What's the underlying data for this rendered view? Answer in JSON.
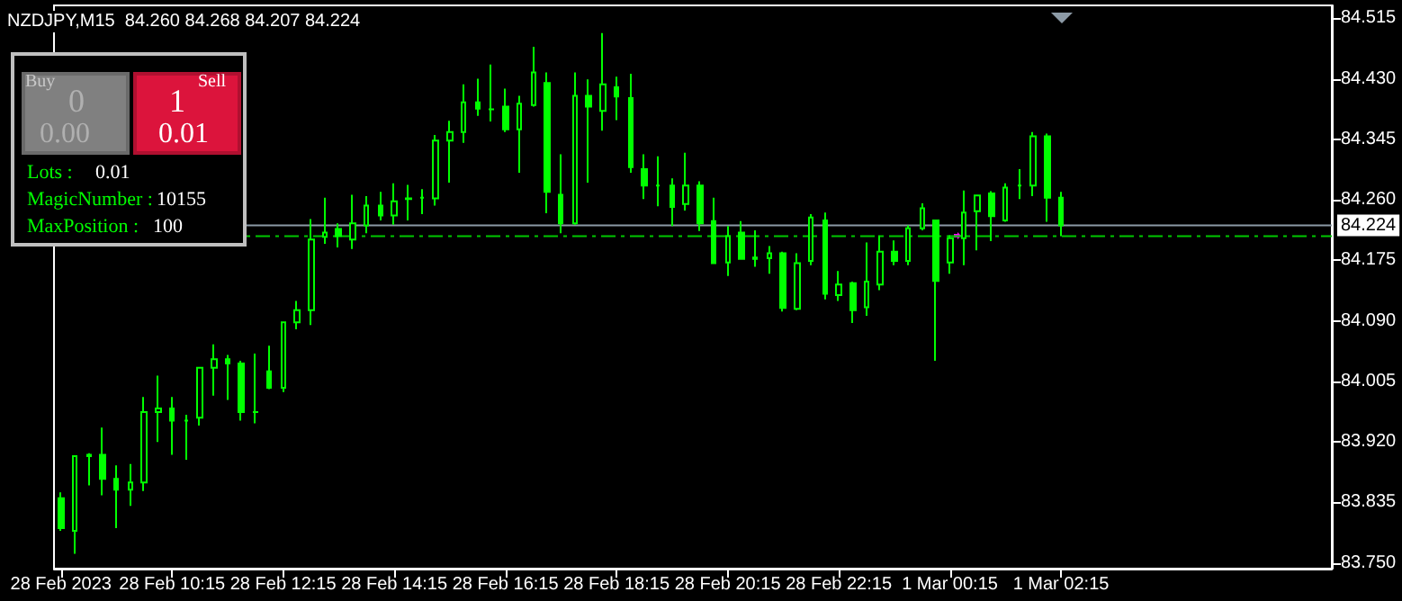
{
  "chart_data": {
    "type": "candlestick",
    "title": "NZDJPY,M15  84.260 84.268 84.207 84.224",
    "color": "#00ff00",
    "grid": false,
    "categories": [
      "28 Feb 2023",
      null,
      null,
      null,
      null,
      null,
      null,
      null,
      "28 Feb 10:15",
      null,
      null,
      null,
      null,
      null,
      null,
      null,
      "28 Feb 12:15",
      null,
      null,
      null,
      null,
      null,
      null,
      null,
      "28 Feb 14:15",
      null,
      null,
      null,
      null,
      null,
      null,
      null,
      "28 Feb 16:15",
      null,
      null,
      null,
      null,
      null,
      null,
      null,
      "28 Feb 18:15",
      null,
      null,
      null,
      null,
      null,
      null,
      null,
      "28 Feb 20:15",
      null,
      null,
      null,
      null,
      null,
      null,
      null,
      "28 Feb 22:15",
      null,
      null,
      null,
      null,
      null,
      null,
      null,
      "1 Mar 00:15",
      null,
      null,
      null,
      null,
      null,
      null,
      null,
      "1 Mar 02:15",
      null,
      null,
      null,
      null,
      null,
      null,
      null,
      null,
      null,
      null,
      null,
      null,
      null,
      null,
      null,
      null,
      null,
      null,
      null
    ],
    "ohlc": [
      [
        83.841,
        83.849,
        83.795,
        83.799
      ],
      [
        83.795,
        83.9,
        83.763,
        83.9
      ],
      [
        83.9,
        83.904,
        83.859,
        83.902
      ],
      [
        83.902,
        83.94,
        83.845,
        83.868
      ],
      [
        83.868,
        83.887,
        83.799,
        83.853
      ],
      [
        83.853,
        83.889,
        83.83,
        83.863
      ],
      [
        83.863,
        83.983,
        83.851,
        83.962
      ],
      [
        83.962,
        84.013,
        83.92,
        83.967
      ],
      [
        83.967,
        83.983,
        83.902,
        83.95
      ],
      [
        83.95,
        83.958,
        83.895,
        83.95
      ],
      [
        83.954,
        84.025,
        83.943,
        84.024
      ],
      [
        84.024,
        84.057,
        83.985,
        84.036
      ],
      [
        84.036,
        84.042,
        83.979,
        84.03
      ],
      [
        84.03,
        84.034,
        83.95,
        83.962
      ],
      [
        83.962,
        84.044,
        83.946,
        83.962
      ],
      [
        84.019,
        84.055,
        83.994,
        83.996
      ],
      [
        83.996,
        84.088,
        83.99,
        84.088
      ],
      [
        84.088,
        84.118,
        84.078,
        84.105
      ],
      [
        84.105,
        84.233,
        84.084,
        84.204
      ],
      [
        84.208,
        84.263,
        84.198,
        84.214
      ],
      [
        84.219,
        84.227,
        84.193,
        84.209
      ],
      [
        84.204,
        84.267,
        84.191,
        84.227
      ],
      [
        84.224,
        84.265,
        84.213,
        84.252
      ],
      [
        84.252,
        84.271,
        84.231,
        84.238
      ],
      [
        84.238,
        84.283,
        84.225,
        84.258
      ],
      [
        84.262,
        84.281,
        84.231,
        84.261
      ],
      [
        84.263,
        84.275,
        84.24,
        84.263
      ],
      [
        84.262,
        84.351,
        84.252,
        84.343
      ],
      [
        84.343,
        84.371,
        84.284,
        84.355
      ],
      [
        84.355,
        84.422,
        84.34,
        84.397
      ],
      [
        84.397,
        84.43,
        84.378,
        84.388
      ],
      [
        84.387,
        84.45,
        84.37,
        84.387
      ],
      [
        84.391,
        84.416,
        84.355,
        84.359
      ],
      [
        84.359,
        84.406,
        84.298,
        84.395
      ],
      [
        84.393,
        84.475,
        84.391,
        84.439
      ],
      [
        84.424,
        84.439,
        84.241,
        84.271
      ],
      [
        84.267,
        84.324,
        84.213,
        84.227
      ],
      [
        84.227,
        84.439,
        84.225,
        84.406
      ],
      [
        84.406,
        84.429,
        84.284,
        84.391
      ],
      [
        84.385,
        84.494,
        84.357,
        84.422
      ],
      [
        84.418,
        84.433,
        84.372,
        84.405
      ],
      [
        84.403,
        84.437,
        84.298,
        84.306
      ],
      [
        84.303,
        84.324,
        84.261,
        84.28
      ],
      [
        84.28,
        84.321,
        84.251,
        84.28
      ],
      [
        84.28,
        84.29,
        84.223,
        84.25
      ],
      [
        84.254,
        84.326,
        84.245,
        84.28
      ],
      [
        84.28,
        84.286,
        84.216,
        84.227
      ],
      [
        84.23,
        84.263,
        84.171,
        84.171
      ],
      [
        84.172,
        84.223,
        84.153,
        84.209
      ],
      [
        84.214,
        84.23,
        84.177,
        84.177
      ],
      [
        84.177,
        84.217,
        84.166,
        84.179
      ],
      [
        84.178,
        84.195,
        84.156,
        84.185
      ],
      [
        84.185,
        84.187,
        84.103,
        84.108
      ],
      [
        84.107,
        84.185,
        84.105,
        84.171
      ],
      [
        84.174,
        84.24,
        84.168,
        84.235
      ],
      [
        84.231,
        84.242,
        84.12,
        84.128
      ],
      [
        84.126,
        84.16,
        84.118,
        84.141
      ],
      [
        84.143,
        84.145,
        84.087,
        84.105
      ],
      [
        84.109,
        84.2,
        84.097,
        84.145
      ],
      [
        84.141,
        84.21,
        84.133,
        84.187
      ],
      [
        84.187,
        84.203,
        84.168,
        84.174
      ],
      [
        84.174,
        84.224,
        84.168,
        84.22
      ],
      [
        84.22,
        84.255,
        84.217,
        84.248
      ],
      [
        84.231,
        84.231,
        84.034,
        84.146
      ],
      [
        84.172,
        84.21,
        84.156,
        84.206
      ],
      [
        84.206,
        84.273,
        84.168,
        84.242
      ],
      [
        84.244,
        84.267,
        84.189,
        84.266
      ],
      [
        84.269,
        84.272,
        84.202,
        84.237
      ],
      [
        84.231,
        84.283,
        84.229,
        84.277
      ],
      [
        84.28,
        84.303,
        84.261,
        84.28
      ],
      [
        84.28,
        84.355,
        84.265,
        84.349
      ],
      [
        84.349,
        84.353,
        84.229,
        84.263
      ],
      [
        84.263,
        84.271,
        84.209,
        84.224
      ],
      null,
      null,
      null,
      null,
      null,
      null,
      null,
      null,
      null,
      null,
      null,
      null,
      null,
      null,
      null,
      null,
      null,
      null,
      null
    ],
    "ylim": [
      83.742,
      84.533
    ],
    "yticks": [
      84.515,
      {
        "value": 84.43,
        "label": "84.430"
      },
      84.345,
      {
        "value": 84.26,
        "label": "84.260"
      },
      84.175,
      {
        "value": 84.09,
        "label": "84.090"
      },
      84.005,
      {
        "value": 83.92,
        "label": "83.920"
      },
      83.835,
      {
        "value": 83.75,
        "label": "83.750"
      }
    ],
    "ref_lines": [
      {
        "axis": "y",
        "value": 84.224,
        "label": "84.224",
        "color": "#8c9aa6",
        "line_style": "solid"
      },
      {
        "axis": "y",
        "value": 84.209,
        "color": "#00c800",
        "line_style": "dashed"
      }
    ],
    "annotations": [
      "Buy",
      "0",
      "0.00",
      "Sell",
      "1",
      "0.01",
      "Lots :",
      "0.01",
      "MagicNumber :",
      "10155",
      "MaxPosition :",
      "100"
    ]
  }
}
